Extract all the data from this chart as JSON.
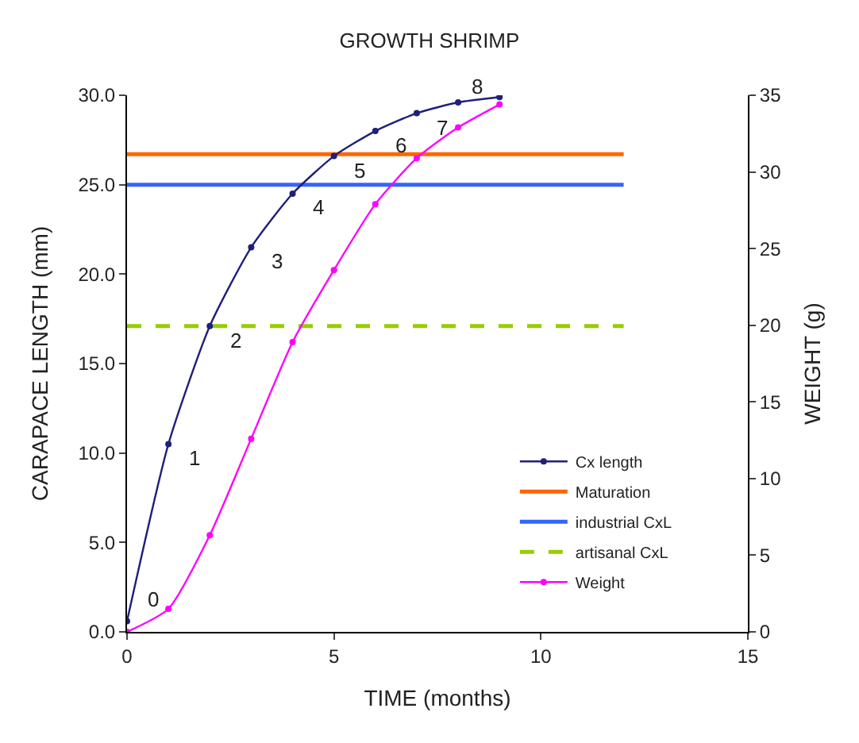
{
  "chart_data": {
    "type": "line",
    "title": "GROWTH SHRIMP",
    "xlabel": "TIME (months)",
    "ylabel": "CARAPACE LENGTH (mm)",
    "y2label": "WEIGHT (g)",
    "xlim": [
      0,
      15
    ],
    "xticks": [
      0,
      5,
      10,
      15
    ],
    "ylim": [
      0,
      30
    ],
    "yticks": [
      {
        "value": 0,
        "label": "0.0"
      },
      {
        "value": 5,
        "label": "5.0"
      },
      {
        "value": 10,
        "label": "10.0"
      },
      {
        "value": 15,
        "label": "15.0"
      },
      {
        "value": 20,
        "label": "20.0"
      },
      {
        "value": 25,
        "label": "25.0"
      },
      {
        "value": 30,
        "label": "30.0"
      }
    ],
    "y2lim": [
      0,
      35
    ],
    "y2ticks": [
      0,
      5,
      10,
      15,
      20,
      25,
      30,
      35
    ],
    "legend": "bottom right",
    "series": [
      {
        "name": "Cx length",
        "color": "#1f1f7a",
        "marker": "circle",
        "line_style": "solid",
        "x": [
          0,
          1,
          2,
          3,
          4,
          5,
          6,
          7,
          8,
          9
        ],
        "values": [
          0.6,
          10.5,
          17.1,
          21.5,
          24.5,
          26.6,
          28.0,
          29.0,
          29.6,
          29.9
        ]
      },
      {
        "name": "Maturation",
        "color": "#ff6600",
        "marker": "none",
        "line_style": "solid",
        "x": [
          0,
          12
        ],
        "values": [
          26.7,
          26.7
        ]
      },
      {
        "name": "industrial CxL",
        "color": "#3366ff",
        "marker": "none",
        "line_style": "solid",
        "x": [
          0,
          12
        ],
        "values": [
          25.0,
          25.0
        ]
      },
      {
        "name": "artisanal CxL",
        "color": "#99cc00",
        "marker": "none",
        "line_style": "dashed",
        "x": [
          0,
          12
        ],
        "values": [
          17.1,
          17.1
        ]
      },
      {
        "name": "Weight",
        "color": "#ff00ff",
        "marker": "circle",
        "line_style": "solid",
        "axis": "y2",
        "x": [
          0,
          1,
          2,
          3,
          4,
          5,
          6,
          7,
          8,
          9
        ],
        "values": [
          0,
          1.5,
          6.3,
          12.6,
          18.9,
          23.6,
          27.9,
          30.9,
          32.9,
          34.4
        ]
      }
    ],
    "annotations": [
      {
        "text": "0",
        "x": 0,
        "y": 0.6
      },
      {
        "text": "1",
        "x": 1,
        "y": 10.5
      },
      {
        "text": "2",
        "x": 2,
        "y": 17.1
      },
      {
        "text": "3",
        "x": 3,
        "y": 21.5
      },
      {
        "text": "4",
        "x": 4,
        "y": 24.5
      },
      {
        "text": "5",
        "x": 5,
        "y": 26.6
      },
      {
        "text": "6",
        "x": 6,
        "y": 28.0
      },
      {
        "text": "7",
        "x": 7,
        "y": 29.0
      },
      {
        "text": "8",
        "x": 8,
        "y": 29.6
      }
    ]
  }
}
